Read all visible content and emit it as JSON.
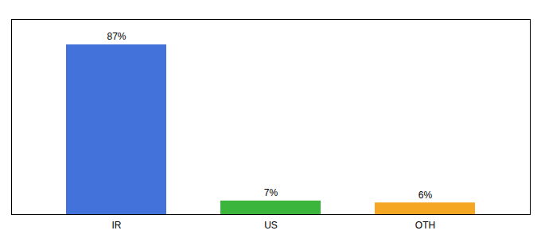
{
  "chart_data": {
    "type": "bar",
    "categories": [
      "IR",
      "US",
      "OTH"
    ],
    "values": [
      87,
      7,
      6
    ],
    "value_labels": [
      "87%",
      "7%",
      "6%"
    ],
    "colors": [
      "#4472db",
      "#3cb53c",
      "#f5a623"
    ],
    "ylim": [
      0,
      100
    ],
    "yticks": [],
    "data_labels": true,
    "tick_labels": "x",
    "grid": false
  }
}
